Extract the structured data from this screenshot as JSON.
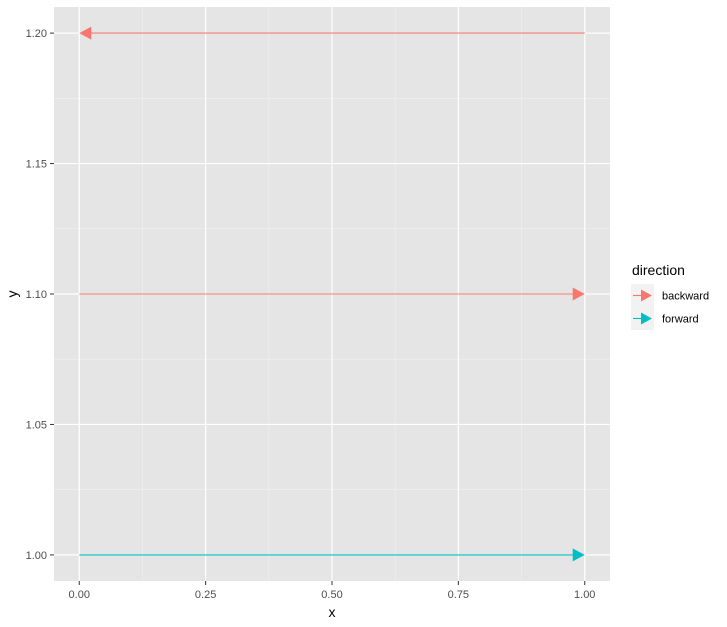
{
  "chart_data": {
    "type": "line",
    "xlabel": "x",
    "ylabel": "y",
    "xlim": [
      -0.05,
      1.05
    ],
    "ylim": [
      0.99,
      1.21
    ],
    "x_ticks": [
      0.0,
      0.25,
      0.5,
      0.75,
      1.0
    ],
    "x_tick_labels": [
      "0.00",
      "0.25",
      "0.50",
      "0.75",
      "1.00"
    ],
    "y_ticks": [
      1.0,
      1.05,
      1.1,
      1.15,
      1.2
    ],
    "y_tick_labels": [
      "1.00",
      "1.05",
      "1.10",
      "1.15",
      "1.20"
    ],
    "grid": true,
    "panel_background": "#e5e5e5",
    "grid_color": "#ffffff",
    "legend": {
      "title": "direction",
      "position": "right",
      "entries": [
        {
          "label": "backward",
          "color": "#f8766d"
        },
        {
          "label": "forward",
          "color": "#00bfc4"
        }
      ]
    },
    "segments": [
      {
        "group": "backward",
        "x_start": 1.0,
        "x_end": 0.0,
        "y": 1.2,
        "arrow_at": "end"
      },
      {
        "group": "backward",
        "x_start": 0.0,
        "x_end": 1.0,
        "y": 1.1,
        "arrow_at": "end"
      },
      {
        "group": "forward",
        "x_start": 0.0,
        "x_end": 1.0,
        "y": 1.0,
        "arrow_at": "end"
      }
    ]
  }
}
